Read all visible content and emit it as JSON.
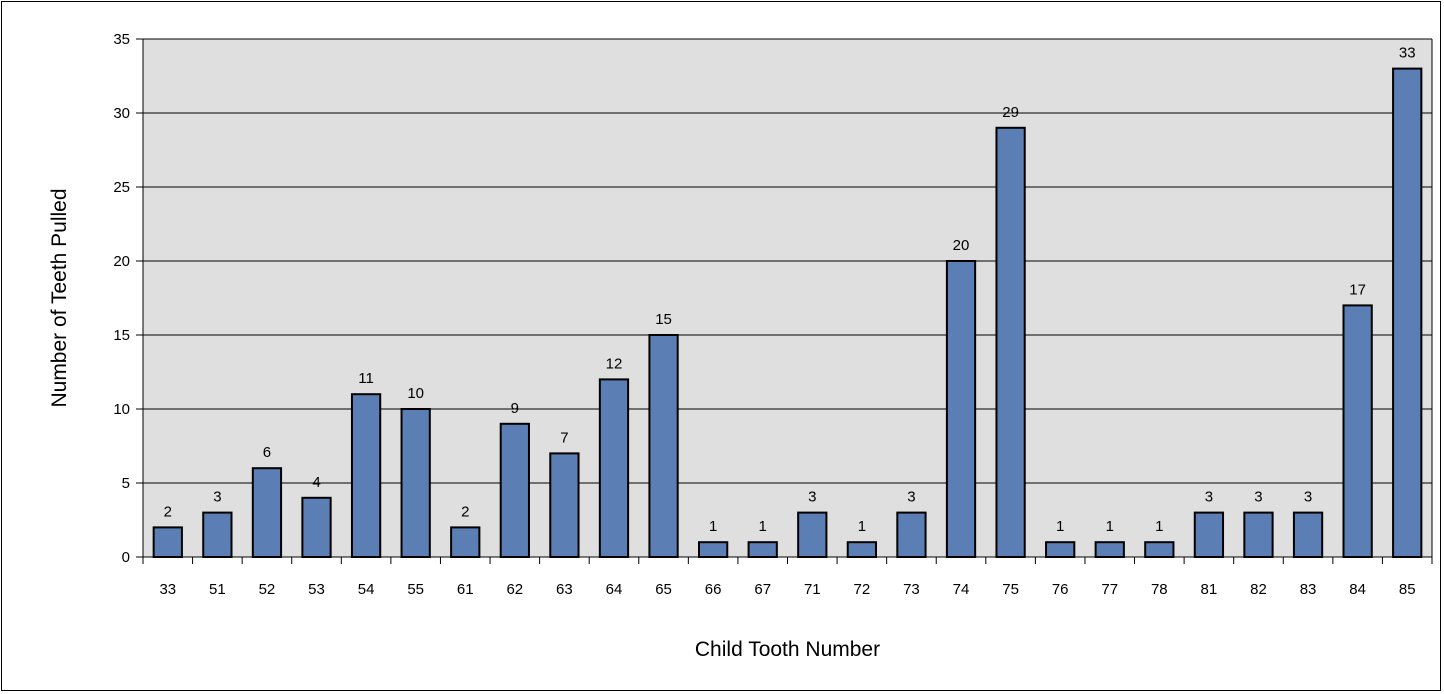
{
  "chart_data": {
    "type": "bar",
    "categories": [
      "33",
      "51",
      "52",
      "53",
      "54",
      "55",
      "61",
      "62",
      "63",
      "64",
      "65",
      "66",
      "67",
      "71",
      "72",
      "73",
      "74",
      "75",
      "76",
      "77",
      "78",
      "81",
      "82",
      "83",
      "84",
      "85"
    ],
    "values": [
      2,
      3,
      6,
      4,
      11,
      10,
      2,
      9,
      7,
      12,
      15,
      1,
      1,
      3,
      1,
      3,
      20,
      29,
      1,
      1,
      1,
      3,
      3,
      3,
      17,
      33
    ],
    "title": "",
    "xlabel": "Child Tooth Number",
    "ylabel": "Number of Teeth Pulled",
    "ylim": [
      0,
      35
    ],
    "yticks": [
      0,
      5,
      10,
      15,
      20,
      25,
      30,
      35
    ],
    "grid": true,
    "legend": "none",
    "data_labels": true,
    "colors": {
      "bar_fill": "#5b7fb5",
      "bar_stroke": "#000000",
      "plot_background": "#dfdfdf",
      "gridline": "#000000"
    }
  }
}
